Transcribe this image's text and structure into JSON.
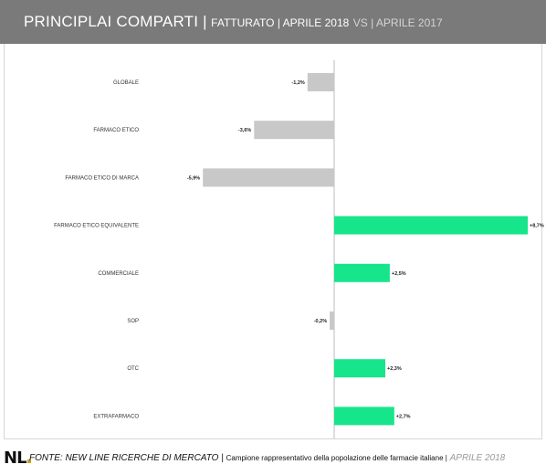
{
  "header": {
    "title_main": "PRINCIPLAI COMPARTI |",
    "title_sub": "FATTURATO | APRILE 2018",
    "title_compare": "VS | APRILE 2017"
  },
  "chart_data": {
    "type": "bar",
    "orientation": "horizontal",
    "categories": [
      "GLOBALE",
      "FARMACO ETICO",
      "FARMACO ETICO DI MARCA",
      "FARMACO ETICO EQUIVALENTE",
      "COMMERCIALE",
      "SOP",
      "OTC",
      "EXTRAFARMACO"
    ],
    "values": [
      -1.2,
      -3.6,
      -5.9,
      8.7,
      2.5,
      -0.2,
      2.3,
      2.7
    ],
    "labels": [
      "-1,2%",
      "-3,6%",
      "-5,9%",
      "+8,7%",
      "+2,5%",
      "-0,2%",
      "+2,3%",
      "+2,7%"
    ],
    "xlim": [
      -8,
      8.7
    ],
    "colors": {
      "negative": "#c8c8c8",
      "positive": "#16e58c"
    }
  },
  "footer": {
    "logo": "NL",
    "source": "FONTE:  NEW LINE RICERCHE DI MERCATO |",
    "description": "Campione rappresentativo della popolazione delle farmacie italiane |",
    "date": "APRILE 2018"
  }
}
